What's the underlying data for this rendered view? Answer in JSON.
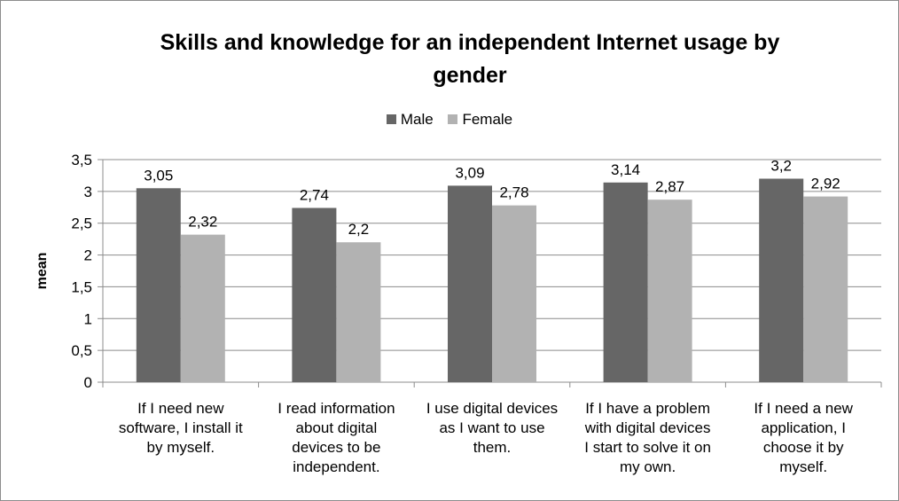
{
  "chart_data": {
    "type": "bar",
    "title": "Skills and knowledge for an independent Internet usage by gender",
    "title_lines": [
      "Skills and knowledge for an independent Internet usage by",
      "gender"
    ],
    "xlabel": "",
    "ylabel": "mean",
    "ylim": [
      0,
      3.5
    ],
    "yticks": [
      "0",
      "0,5",
      "1",
      "1,5",
      "2",
      "2,5",
      "3",
      "3,5"
    ],
    "grid": true,
    "legend_position": "top",
    "categories": [
      "If I need new software, I install it by myself.",
      "I read information about digital devices to be independent.",
      "I use digital devices as I want to use them.",
      "If I have a problem with digital devices I start to solve it on my own.",
      "If I need a new application, I choose it by myself."
    ],
    "category_lines": [
      [
        "If I need new",
        "software, I install it",
        "by myself."
      ],
      [
        "I read information",
        "about digital",
        "devices to be",
        "independent."
      ],
      [
        "I use digital devices",
        "as I want to use",
        "them."
      ],
      [
        "If I have a problem",
        "with digital devices",
        "I start to solve it on",
        "my own."
      ],
      [
        "If I need a new",
        "application, I",
        "choose it by",
        "myself."
      ]
    ],
    "series": [
      {
        "name": "Male",
        "color": "#666666",
        "values": [
          3.05,
          2.74,
          3.09,
          3.14,
          3.2
        ],
        "labels": [
          "3,05",
          "2,74",
          "3,09",
          "3,14",
          "3,2"
        ]
      },
      {
        "name": "Female",
        "color": "#b2b2b2",
        "values": [
          2.32,
          2.2,
          2.78,
          2.87,
          2.92
        ],
        "labels": [
          "2,32",
          "2,2",
          "2,78",
          "2,87",
          "2,92"
        ]
      }
    ]
  }
}
